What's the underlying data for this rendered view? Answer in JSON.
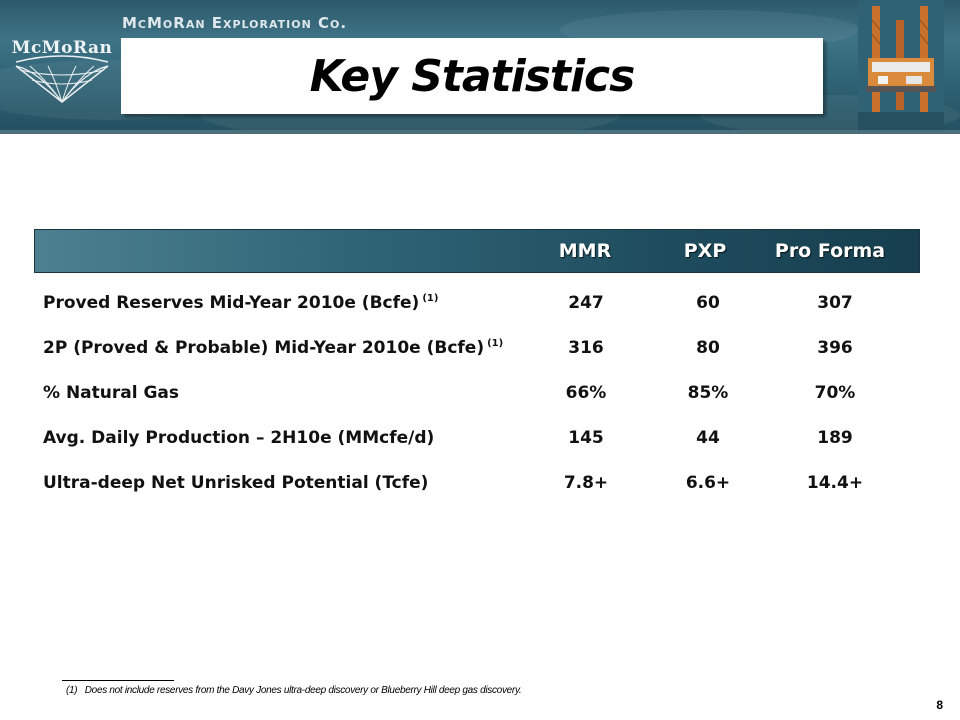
{
  "header": {
    "company_name": "McMoRan Exploration Co.",
    "logo_text": "McMoRan",
    "title": "Key Statistics"
  },
  "table": {
    "columns": [
      "MMR",
      "PXP",
      "Pro Forma"
    ],
    "rows": [
      {
        "label": "Proved Reserves Mid-Year 2010e (Bcfe)",
        "note": "(1)",
        "values": [
          "247",
          "60",
          "307"
        ]
      },
      {
        "label": "2P (Proved & Probable) Mid-Year 2010e (Bcfe)",
        "note": "(1)",
        "values": [
          "316",
          "80",
          "396"
        ]
      },
      {
        "label": "% Natural Gas",
        "note": "",
        "values": [
          "66%",
          "85%",
          "70%"
        ]
      },
      {
        "label": "Avg. Daily Production – 2H10e (MMcfe/d)",
        "note": "",
        "values": [
          "145",
          "44",
          "189"
        ]
      },
      {
        "label": "Ultra-deep Net Unrisked Potential (Tcfe)",
        "note": "",
        "values": [
          "7.8+",
          "6.6+",
          "14.4+"
        ]
      }
    ]
  },
  "footnote": {
    "marker": "(1)",
    "text": "Does not include reserves from the Davy Jones ultra-deep discovery or  Blueberry Hill  deep gas discovery."
  },
  "page_number": "8",
  "colors": {
    "banner": "#2f6476",
    "table_header": "#1f4d5e",
    "title_box": "#ffffff"
  }
}
